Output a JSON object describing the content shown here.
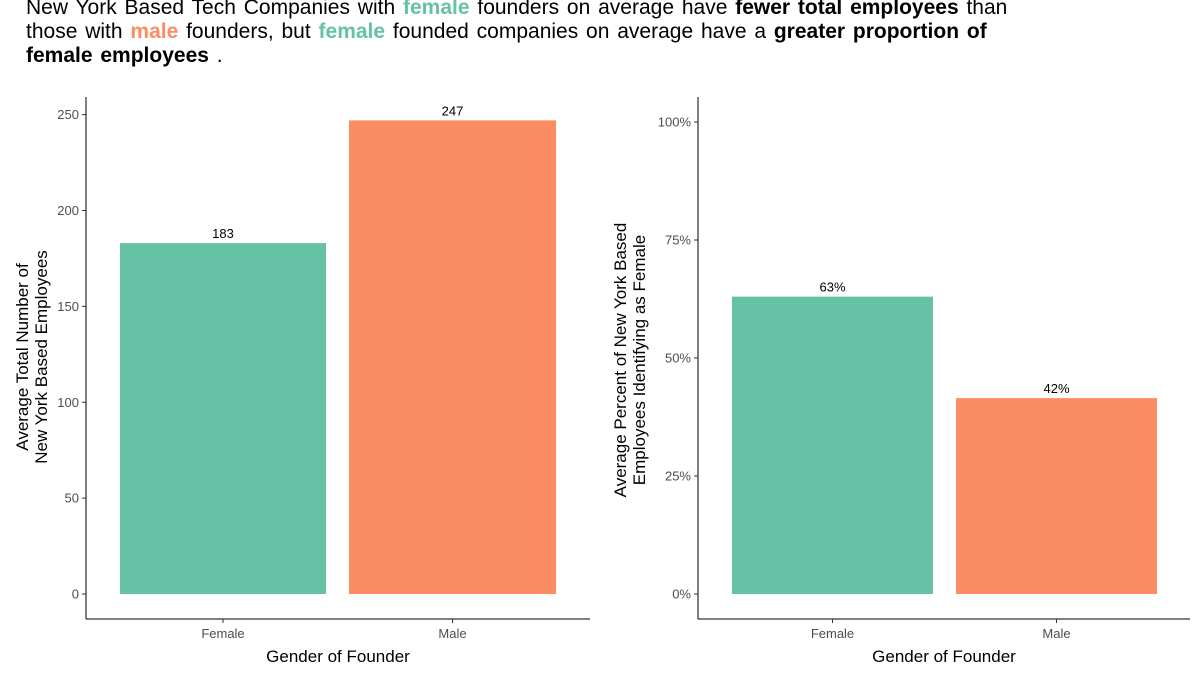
{
  "headline": {
    "t1": "New York Based Tech Companies with ",
    "t2": "female",
    "t3": " founders on average have ",
    "t4": "fewer total employees",
    "t5": " than those with ",
    "t6": "male",
    "t7": " founders, but ",
    "t8": "female",
    "t9": " founded companies on average have a ",
    "t10": "greater proportion  of female employees",
    "t11": " ."
  },
  "colors": {
    "female": "#66c2a5",
    "male": "#fc8d62"
  },
  "chart_data": [
    {
      "type": "bar",
      "categories": [
        "Female",
        "Male"
      ],
      "values": [
        183,
        247
      ],
      "data_labels": [
        "183",
        "247"
      ],
      "xlabel": "Gender of Founder",
      "ylabel": [
        "Average Total Number of",
        "New York Based Employees"
      ],
      "ylim": [
        0,
        260
      ],
      "yticks": [
        0,
        50,
        100,
        150,
        200,
        250
      ],
      "ytick_labels": [
        "0",
        "50",
        "100",
        "150",
        "200",
        "250"
      ],
      "grid": false
    },
    {
      "type": "bar",
      "categories": [
        "Female",
        "Male"
      ],
      "values": [
        0.63,
        0.415
      ],
      "data_labels": [
        "63%",
        "42%"
      ],
      "xlabel": "Gender of Founder",
      "ylabel": [
        "Average Percent of New York Based",
        "Employees Identifying as Female"
      ],
      "ylim": [
        0,
        1.05
      ],
      "yticks": [
        0,
        0.25,
        0.5,
        0.75,
        1.0
      ],
      "ytick_labels": [
        "0%",
        "25%",
        "50%",
        "75%",
        "100%"
      ],
      "grid": false
    }
  ]
}
